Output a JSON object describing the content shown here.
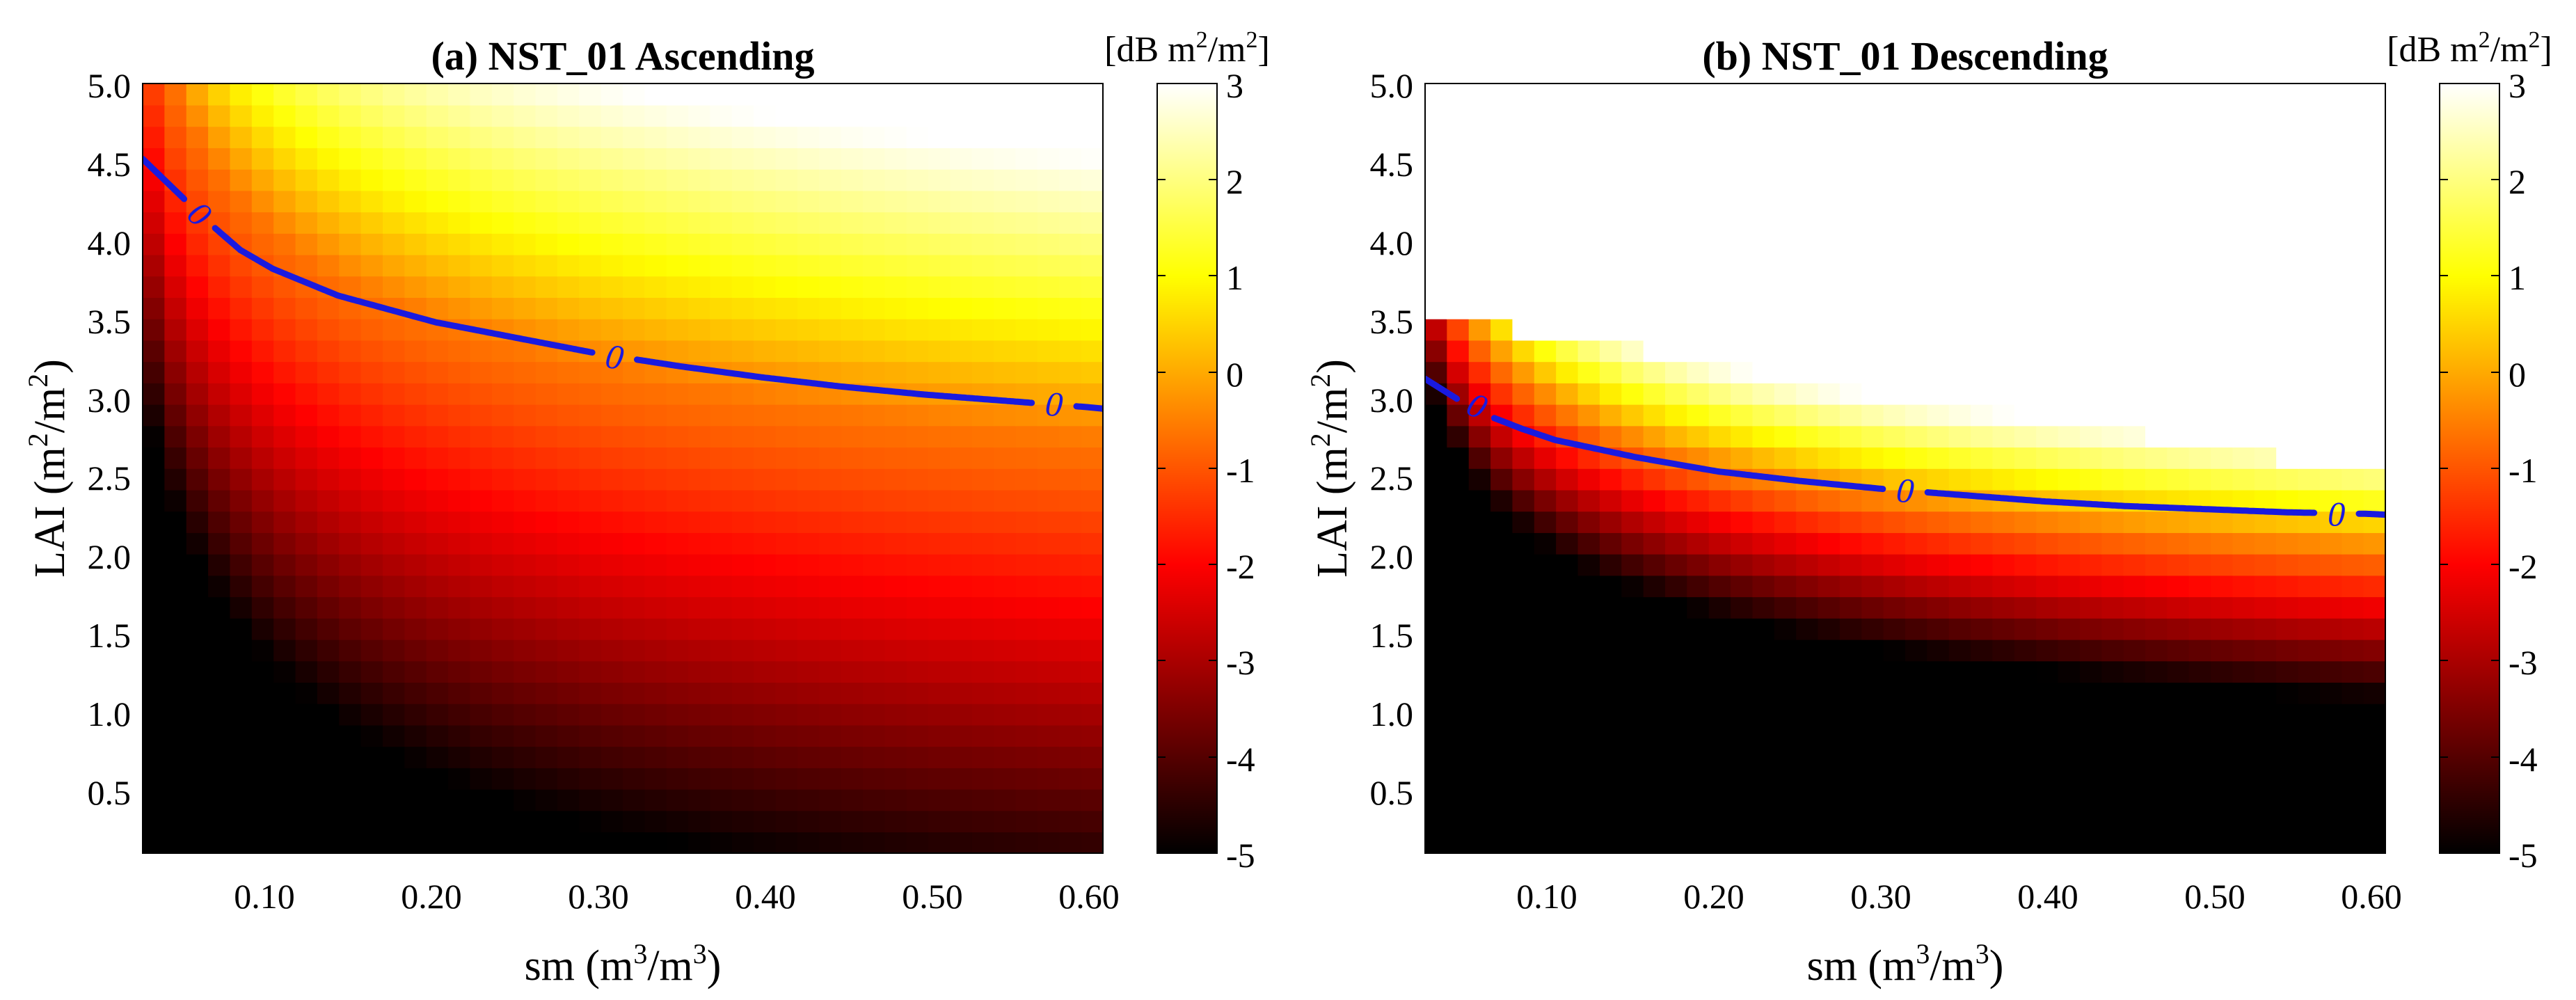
{
  "chart_data": [
    {
      "type": "heatmap",
      "title": "(a) NST_01 Ascending",
      "xlabel": {
        "main": "sm (m",
        "sup1": "3",
        "mid": "/m",
        "sup2": "3",
        "end": ")"
      },
      "ylabel": {
        "main": "LAI (m",
        "sup1": "2",
        "mid": "/m",
        "sup2": "2",
        "end": ")"
      },
      "xlim": [
        0.02,
        0.61
      ],
      "ylim": [
        0.1,
        5.0
      ],
      "xticks": [
        {
          "value": 0.1,
          "label": "0.10"
        },
        {
          "value": 0.2,
          "label": "0.20"
        },
        {
          "value": 0.3,
          "label": "0.30"
        },
        {
          "value": 0.4,
          "label": "0.40"
        },
        {
          "value": 0.5,
          "label": "0.50"
        },
        {
          "value": 0.6,
          "label": "0.60"
        }
      ],
      "yticks": [
        {
          "value": 0.5,
          "label": "0.5"
        },
        {
          "value": 1.0,
          "label": "1.0"
        },
        {
          "value": 1.5,
          "label": "1.5"
        },
        {
          "value": 2.0,
          "label": "2.0"
        },
        {
          "value": 2.5,
          "label": "2.5"
        },
        {
          "value": 3.0,
          "label": "3.0"
        },
        {
          "value": 3.5,
          "label": "3.5"
        },
        {
          "value": 4.0,
          "label": "4.0"
        },
        {
          "value": 4.5,
          "label": "4.5"
        },
        {
          "value": 5.0,
          "label": "5.0"
        }
      ],
      "grid_cols": 44,
      "grid_rows": 36,
      "field_model": {
        "a": 4.05,
        "p": 0.22,
        "offset": -0.6,
        "scale": 1.7,
        "clip_min": -5,
        "clip_max": 3,
        "lai_undefined_above": null
      },
      "zero_contour": {
        "color": "#1a1adf",
        "points": [
          [
            0.02,
            4.52
          ],
          [
            0.04,
            4.32
          ],
          [
            0.06,
            4.12
          ],
          [
            0.08,
            3.94
          ],
          [
            0.1,
            3.82
          ],
          [
            0.14,
            3.65
          ],
          [
            0.2,
            3.48
          ],
          [
            0.25,
            3.38
          ],
          [
            0.3,
            3.28
          ],
          [
            0.35,
            3.2
          ],
          [
            0.4,
            3.13
          ],
          [
            0.45,
            3.07
          ],
          [
            0.5,
            3.02
          ],
          [
            0.55,
            2.98
          ],
          [
            0.6,
            2.94
          ],
          [
            0.61,
            2.93
          ]
        ],
        "labels": [
          {
            "text": "0",
            "x": 0.055,
            "y": 4.17
          },
          {
            "text": "0",
            "x": 0.31,
            "y": 3.26
          },
          {
            "text": "0",
            "x": 0.58,
            "y": 2.96
          }
        ]
      },
      "colorbar": {
        "title": {
          "main": "[dB m",
          "sup1": "2",
          "mid": "/m",
          "sup2": "2",
          "end": "]"
        },
        "range": [
          -5,
          3
        ],
        "ticks": [
          {
            "value": 3,
            "label": "3"
          },
          {
            "value": 2,
            "label": "2"
          },
          {
            "value": 1,
            "label": "1"
          },
          {
            "value": 0,
            "label": "0"
          },
          {
            "value": -1,
            "label": "-1"
          },
          {
            "value": -2,
            "label": "-2"
          },
          {
            "value": -3,
            "label": "-3"
          },
          {
            "value": -4,
            "label": "-4"
          },
          {
            "value": -5,
            "label": "-5"
          }
        ],
        "colormap": "hot"
      }
    },
    {
      "type": "heatmap",
      "title": "(b) NST_01 Descending",
      "xlabel": {
        "main": "sm (m",
        "sup1": "3",
        "mid": "/m",
        "sup2": "3",
        "end": ")"
      },
      "ylabel": {
        "main": "LAI (m",
        "sup1": "2",
        "mid": "/m",
        "sup2": "2",
        "end": ")"
      },
      "xlim": [
        0.02,
        0.61
      ],
      "ylim": [
        0.1,
        5.0
      ],
      "xticks": [
        {
          "value": 0.1,
          "label": "0.10"
        },
        {
          "value": 0.2,
          "label": "0.20"
        },
        {
          "value": 0.3,
          "label": "0.30"
        },
        {
          "value": 0.4,
          "label": "0.40"
        },
        {
          "value": 0.5,
          "label": "0.50"
        },
        {
          "value": 0.6,
          "label": "0.60"
        }
      ],
      "yticks": [
        {
          "value": 0.5,
          "label": "0.5"
        },
        {
          "value": 1.0,
          "label": "1.0"
        },
        {
          "value": 1.5,
          "label": "1.5"
        },
        {
          "value": 2.0,
          "label": "2.0"
        },
        {
          "value": 2.5,
          "label": "2.5"
        },
        {
          "value": 3.0,
          "label": "3.0"
        },
        {
          "value": 3.5,
          "label": "3.5"
        },
        {
          "value": 4.0,
          "label": "4.0"
        },
        {
          "value": 4.5,
          "label": "4.5"
        },
        {
          "value": 5.0,
          "label": "5.0"
        }
      ],
      "grid_cols": 44,
      "grid_rows": 36,
      "field_model": {
        "a": 2.98,
        "p": 0.21,
        "offset": -0.4,
        "scale": 5.0,
        "clip_min": -5,
        "clip_max": 3,
        "lai_undefined_above": {
          "a": 3.55,
          "b": -1.7
        }
      },
      "zero_contour": {
        "color": "#1a1adf",
        "points": [
          [
            0.02,
            3.12
          ],
          [
            0.04,
            2.99
          ],
          [
            0.06,
            2.88
          ],
          [
            0.08,
            2.8
          ],
          [
            0.1,
            2.73
          ],
          [
            0.15,
            2.62
          ],
          [
            0.2,
            2.53
          ],
          [
            0.25,
            2.47
          ],
          [
            0.3,
            2.42
          ],
          [
            0.35,
            2.38
          ],
          [
            0.4,
            2.34
          ],
          [
            0.45,
            2.31
          ],
          [
            0.5,
            2.29
          ],
          [
            0.55,
            2.27
          ],
          [
            0.6,
            2.26
          ],
          [
            0.61,
            2.255
          ]
        ],
        "labels": [
          {
            "text": "0",
            "x": 0.052,
            "y": 2.95
          },
          {
            "text": "0",
            "x": 0.315,
            "y": 2.41
          },
          {
            "text": "0",
            "x": 0.58,
            "y": 2.26
          }
        ]
      },
      "colorbar": {
        "title": {
          "main": "[dB m",
          "sup1": "2",
          "mid": "/m",
          "sup2": "2",
          "end": "]"
        },
        "range": [
          -5,
          3
        ],
        "ticks": [
          {
            "value": 3,
            "label": "3"
          },
          {
            "value": 2,
            "label": "2"
          },
          {
            "value": 1,
            "label": "1"
          },
          {
            "value": 0,
            "label": "0"
          },
          {
            "value": -1,
            "label": "-1"
          },
          {
            "value": -2,
            "label": "-2"
          },
          {
            "value": -3,
            "label": "-3"
          },
          {
            "value": -4,
            "label": "-4"
          },
          {
            "value": -5,
            "label": "-5"
          }
        ],
        "colormap": "hot"
      }
    }
  ]
}
